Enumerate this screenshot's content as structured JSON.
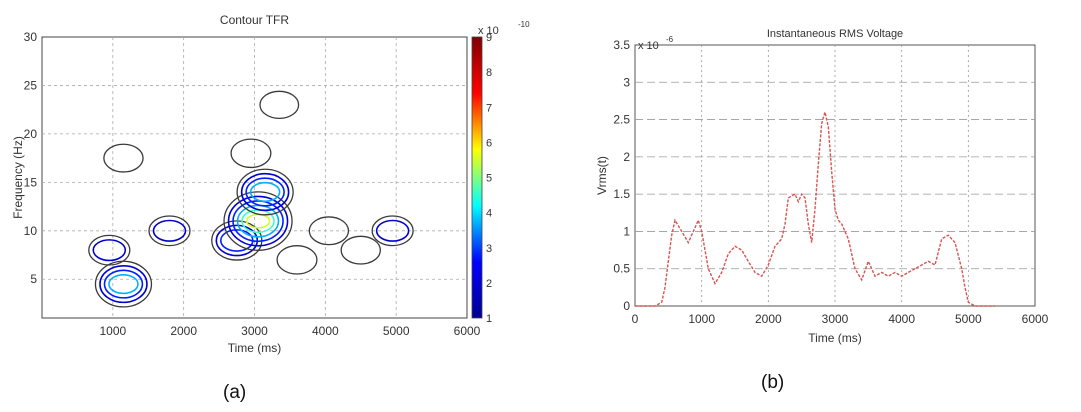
{
  "captions": {
    "a": "(a)",
    "b": "(b)"
  },
  "chart_data": [
    {
      "type": "contour",
      "title": "Contour TFR",
      "xlabel": "Time (ms)",
      "ylabel": "Frequency (Hz)",
      "xlim": [
        0,
        6000
      ],
      "ylim": [
        1,
        30
      ],
      "xticks": [
        1000,
        2000,
        3000,
        4000,
        5000,
        6000
      ],
      "xtick_labels": [
        "1000",
        "2000",
        "3000",
        "4000",
        "5000",
        "6000"
      ],
      "yticks": [
        5,
        10,
        15,
        20,
        25,
        30
      ],
      "ytick_labels": [
        "5",
        "10",
        "15",
        "20",
        "25",
        "30"
      ],
      "grid": true,
      "colorbar": {
        "multiplier": "x 10",
        "exponent": "-10",
        "range": [
          1,
          9
        ],
        "ticks": [
          1,
          2,
          3,
          4,
          5,
          6,
          7,
          8,
          9
        ],
        "tick_labels": [
          "1",
          "2",
          "3",
          "4",
          "5",
          "6",
          "7",
          "8",
          "9"
        ],
        "colormap": [
          "#00008f",
          "#0000ff",
          "#00ffff",
          "#ffff00",
          "#ff0000",
          "#800000"
        ]
      },
      "contour_regions": [
        {
          "time_ms": 1150,
          "freq_hz": 4.5,
          "peak": 4
        },
        {
          "time_ms": 950,
          "freq_hz": 8,
          "peak": 1.5
        },
        {
          "time_ms": 1150,
          "freq_hz": 17.5,
          "peak": 1.2
        },
        {
          "time_ms": 1800,
          "freq_hz": 10,
          "peak": 1.5
        },
        {
          "time_ms": 2750,
          "freq_hz": 9,
          "peak": 3
        },
        {
          "time_ms": 3050,
          "freq_hz": 11,
          "peak": 6
        },
        {
          "time_ms": 3150,
          "freq_hz": 14,
          "peak": 4
        },
        {
          "time_ms": 2950,
          "freq_hz": 18,
          "peak": 1.3
        },
        {
          "time_ms": 3350,
          "freq_hz": 23,
          "peak": 1.1
        },
        {
          "time_ms": 3600,
          "freq_hz": 7,
          "peak": 1.3
        },
        {
          "time_ms": 4050,
          "freq_hz": 10,
          "peak": 1.2
        },
        {
          "time_ms": 4950,
          "freq_hz": 10,
          "peak": 1.5
        },
        {
          "time_ms": 4500,
          "freq_hz": 8,
          "peak": 1.2
        }
      ]
    },
    {
      "type": "line",
      "title": "Instantaneous RMS Voltage",
      "xlabel": "Time (ms)",
      "ylabel": "Vrms(t)",
      "y_multiplier": "x 10",
      "y_exponent": "-6",
      "xlim": [
        0,
        6000
      ],
      "ylim": [
        0,
        3.5
      ],
      "xticks": [
        0,
        1000,
        2000,
        3000,
        4000,
        5000,
        6000
      ],
      "xtick_labels": [
        "0",
        "1000",
        "2000",
        "3000",
        "4000",
        "5000",
        "6000"
      ],
      "yticks": [
        0,
        0.5,
        1,
        1.5,
        2,
        2.5,
        3,
        3.5
      ],
      "ytick_labels": [
        "0",
        "0.5",
        "1",
        "1.5",
        "2",
        "2.5",
        "3",
        "3.5"
      ],
      "grid": true,
      "line_color": "#d9534f",
      "series": [
        {
          "x": [
            0,
            300,
            400,
            450,
            500,
            550,
            600,
            700,
            800,
            900,
            950,
            1000,
            1100,
            1200,
            1300,
            1400,
            1500,
            1600,
            1700,
            1800,
            1900,
            2000,
            2100,
            2200,
            2250,
            2300,
            2400,
            2450,
            2500,
            2550,
            2600,
            2650,
            2700,
            2750,
            2800,
            2850,
            2900,
            2950,
            3000,
            3050,
            3100,
            3200,
            3300,
            3400,
            3500,
            3550,
            3600,
            3700,
            3800,
            3900,
            4000,
            4100,
            4200,
            4300,
            4400,
            4500,
            4600,
            4700,
            4800,
            4900,
            4950,
            5000,
            5100,
            5400
          ],
          "y": [
            0,
            0,
            0.05,
            0.25,
            0.6,
            0.95,
            1.15,
            1.0,
            0.85,
            1.05,
            1.15,
            1.0,
            0.5,
            0.3,
            0.45,
            0.7,
            0.8,
            0.75,
            0.6,
            0.45,
            0.4,
            0.55,
            0.8,
            0.9,
            1.1,
            1.45,
            1.5,
            1.4,
            1.5,
            1.45,
            1.1,
            0.85,
            1.3,
            1.9,
            2.45,
            2.6,
            2.4,
            1.8,
            1.3,
            1.15,
            1.1,
            0.9,
            0.5,
            0.35,
            0.6,
            0.5,
            0.4,
            0.45,
            0.4,
            0.45,
            0.4,
            0.45,
            0.5,
            0.55,
            0.6,
            0.55,
            0.9,
            0.95,
            0.85,
            0.5,
            0.25,
            0.05,
            0,
            0
          ]
        }
      ]
    }
  ]
}
